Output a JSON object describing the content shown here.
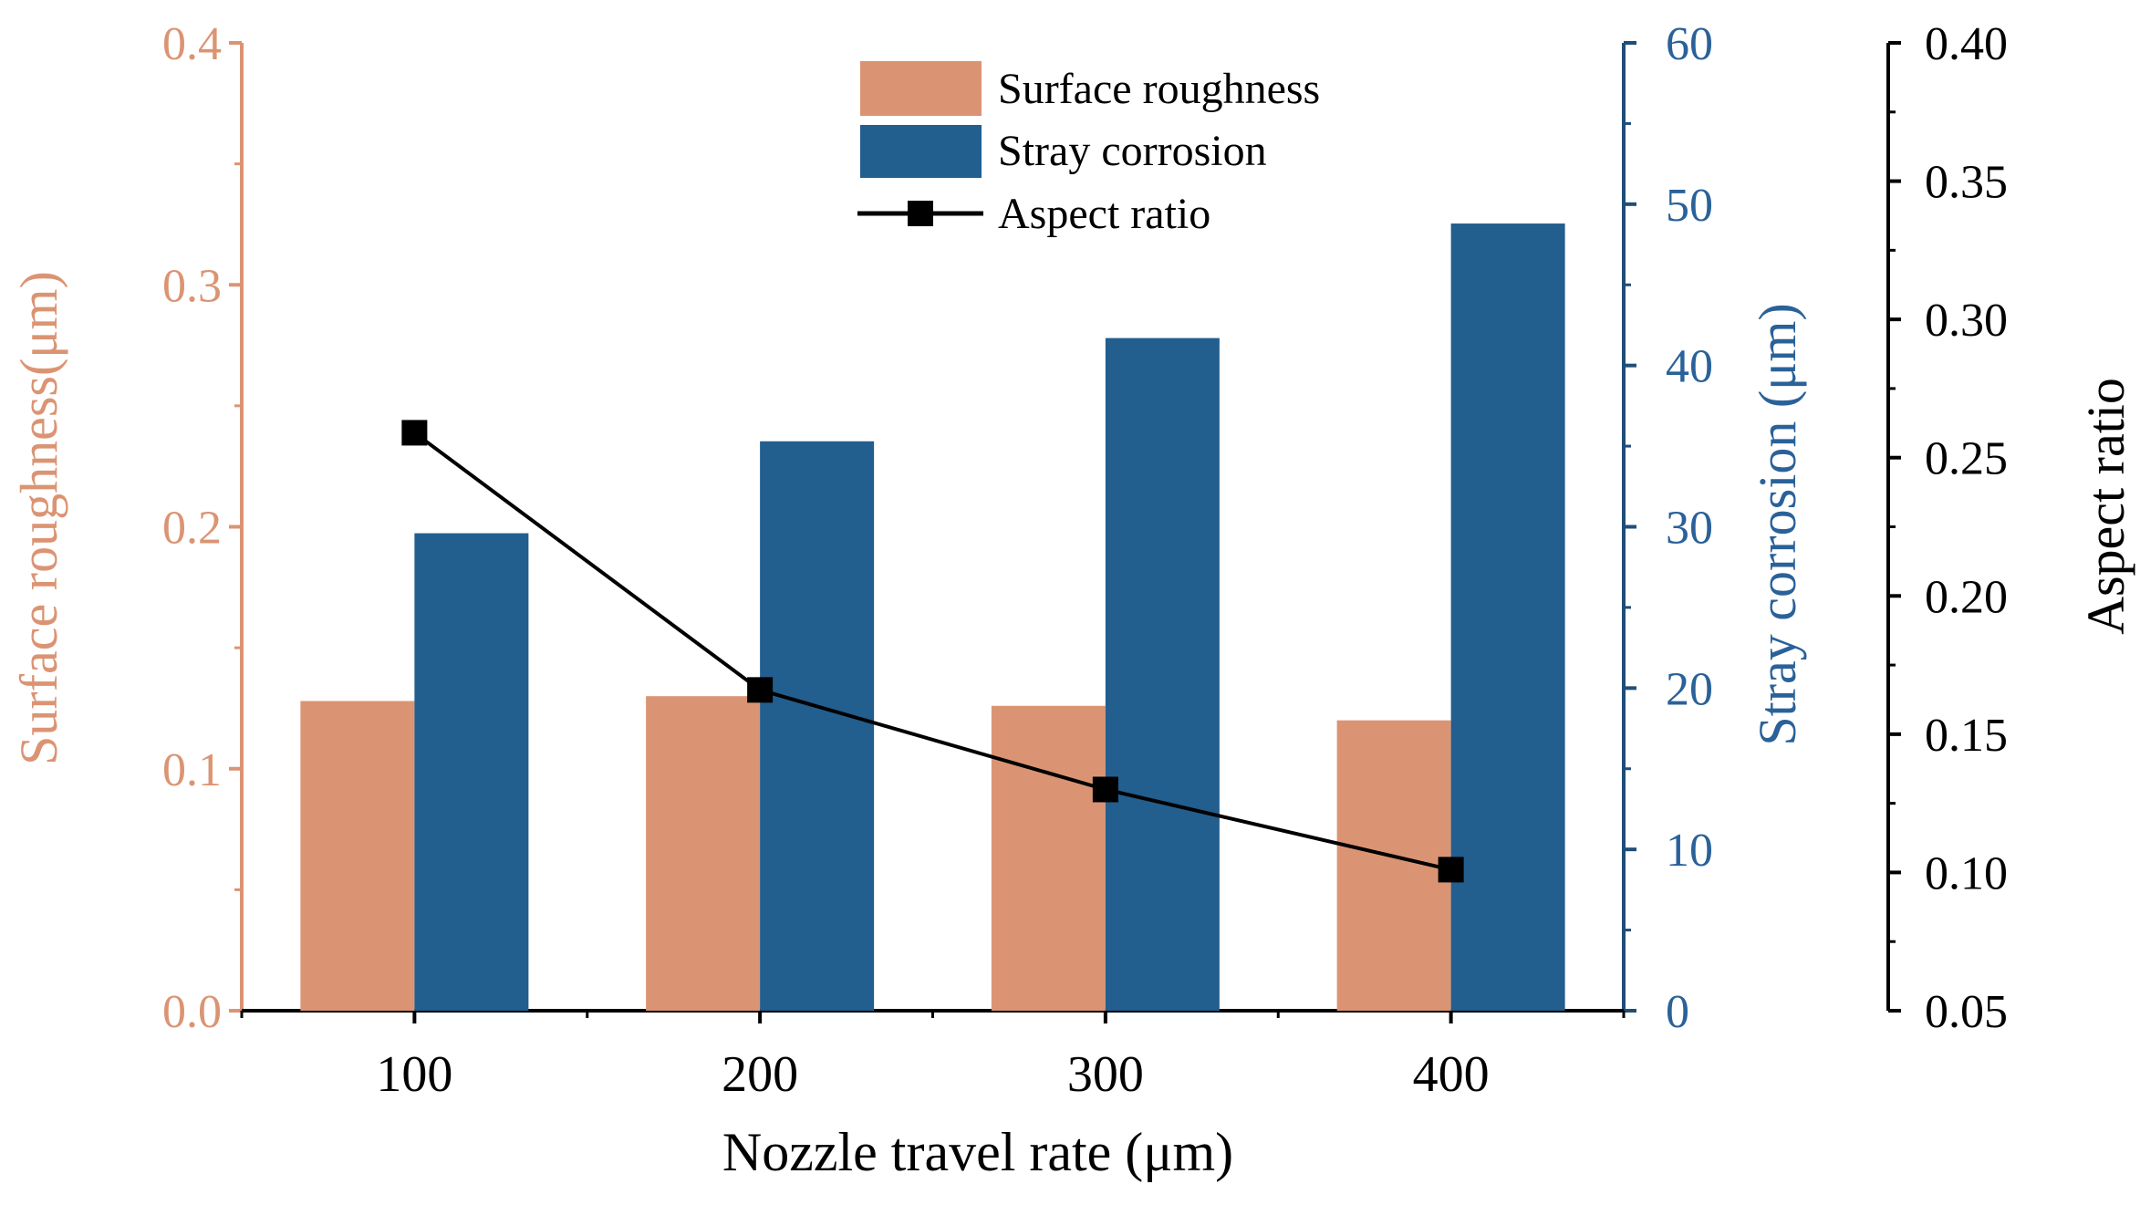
{
  "chart_data": {
    "type": "bar+line",
    "categories": [
      "100",
      "200",
      "300",
      "400"
    ],
    "xlabel": "Nozzle travel rate (μm)",
    "series": [
      {
        "name": "Surface roughness",
        "type": "bar",
        "axis": "left",
        "color": "#DB9473",
        "values": [
          0.128,
          0.13,
          0.126,
          0.12
        ]
      },
      {
        "name": "Stray corrosion",
        "type": "bar",
        "axis": "right1",
        "color": "#225E8E",
        "values": [
          29.6,
          35.3,
          41.7,
          48.8
        ]
      },
      {
        "name": "Aspect ratio",
        "type": "line",
        "axis": "right2",
        "color": "#000000",
        "marker": "square",
        "values": [
          0.259,
          0.166,
          0.13,
          0.101
        ]
      }
    ],
    "axes": {
      "left": {
        "label": "Surface roughness(μm)",
        "range": [
          0,
          0.4
        ],
        "ticks": [
          "0.0",
          "0.1",
          "0.2",
          "0.3",
          "0.4"
        ],
        "color": "#DB9473"
      },
      "right1": {
        "label": "Stray corrosion  (μm)",
        "range": [
          0,
          60
        ],
        "ticks": [
          "0",
          "10",
          "20",
          "30",
          "40",
          "50",
          "60"
        ],
        "color": "#2A6199"
      },
      "right2": {
        "label": "Aspect ratio",
        "range": [
          0.05,
          0.4
        ],
        "ticks": [
          "0.05",
          "0.10",
          "0.15",
          "0.20",
          "0.25",
          "0.30",
          "0.35",
          "0.40"
        ],
        "color": "#000000"
      }
    },
    "legend": {
      "position": "top-center",
      "entries": [
        "Surface roughness",
        "Stray corrosion",
        "Aspect ratio"
      ]
    },
    "grid": false
  }
}
